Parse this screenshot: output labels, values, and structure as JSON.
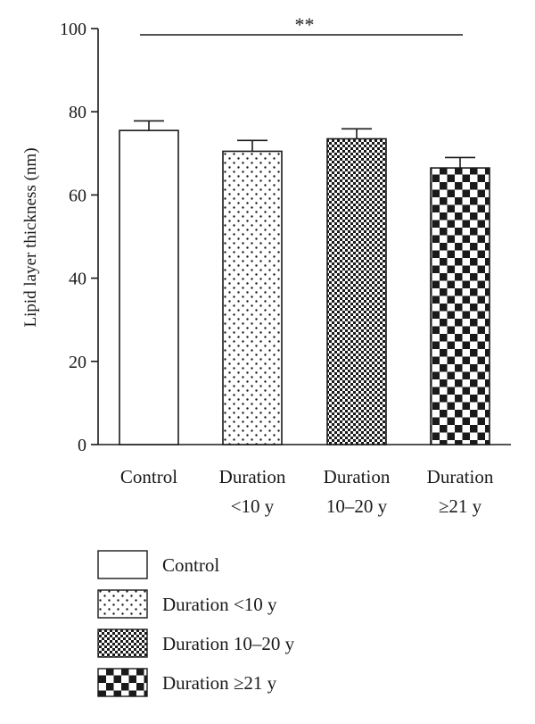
{
  "chart_data": {
    "type": "bar",
    "ylabel": "Lipid layer thickness (nm)",
    "ylim": [
      0,
      100
    ],
    "yticks": [
      0,
      20,
      40,
      60,
      80,
      100
    ],
    "categories": [
      {
        "line1": "Control",
        "line2": ""
      },
      {
        "line1": "Duration",
        "line2": "<10 y"
      },
      {
        "line1": "Duration",
        "line2": "10–20 y"
      },
      {
        "line1": "Duration",
        "line2": "≥21 y"
      }
    ],
    "values": [
      75.5,
      70.5,
      73.5,
      66.5
    ],
    "errors": [
      2.3,
      2.6,
      2.4,
      2.5
    ],
    "patterns": [
      "empty",
      "dots",
      "fine-checker",
      "coarse-checker"
    ],
    "significance": {
      "label": "**",
      "from": 0,
      "to": 3,
      "y": 98.5
    },
    "legend": {
      "placement": "bottom-left",
      "entries": [
        "Control",
        "Duration <10 y",
        "Duration 10–20 y",
        "Duration ≥21 y"
      ]
    },
    "grid": false,
    "colors": {
      "fill": "#ffffff",
      "ink": "#1a1a1a"
    }
  }
}
